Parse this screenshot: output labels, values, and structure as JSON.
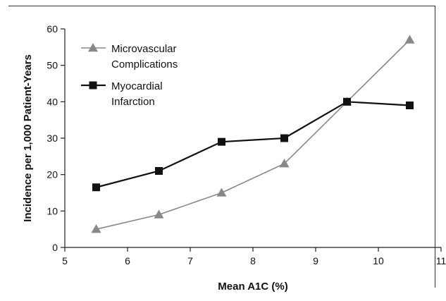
{
  "chart_data": {
    "type": "line",
    "xlabel": "Mean A1C (%)",
    "ylabel": "Incidence per 1,000 Patient-Years",
    "xlim": [
      5,
      11
    ],
    "ylim": [
      0,
      60
    ],
    "x_ticks": [
      "5",
      "6",
      "7",
      "8",
      "9",
      "10",
      "11"
    ],
    "y_ticks": [
      "0",
      "10",
      "20",
      "30",
      "40",
      "50",
      "60"
    ],
    "grid": false,
    "legend_position": "top-left",
    "series": [
      {
        "name": "Microvascular Complications",
        "legend_lines": [
          "Microvascular",
          "Complications"
        ],
        "marker": "triangle",
        "color": "#888888",
        "x": [
          5.5,
          6.5,
          7.5,
          8.5,
          9.5,
          10.5
        ],
        "values": [
          5,
          9,
          15,
          23,
          40,
          57
        ]
      },
      {
        "name": "Myocardial Infarction",
        "legend_lines": [
          "Myocardial",
          "Infarction"
        ],
        "marker": "square",
        "color": "#111111",
        "x": [
          5.5,
          6.5,
          7.5,
          8.5,
          9.5,
          10.5
        ],
        "values": [
          16.5,
          21,
          29,
          30,
          40,
          39
        ]
      }
    ]
  }
}
